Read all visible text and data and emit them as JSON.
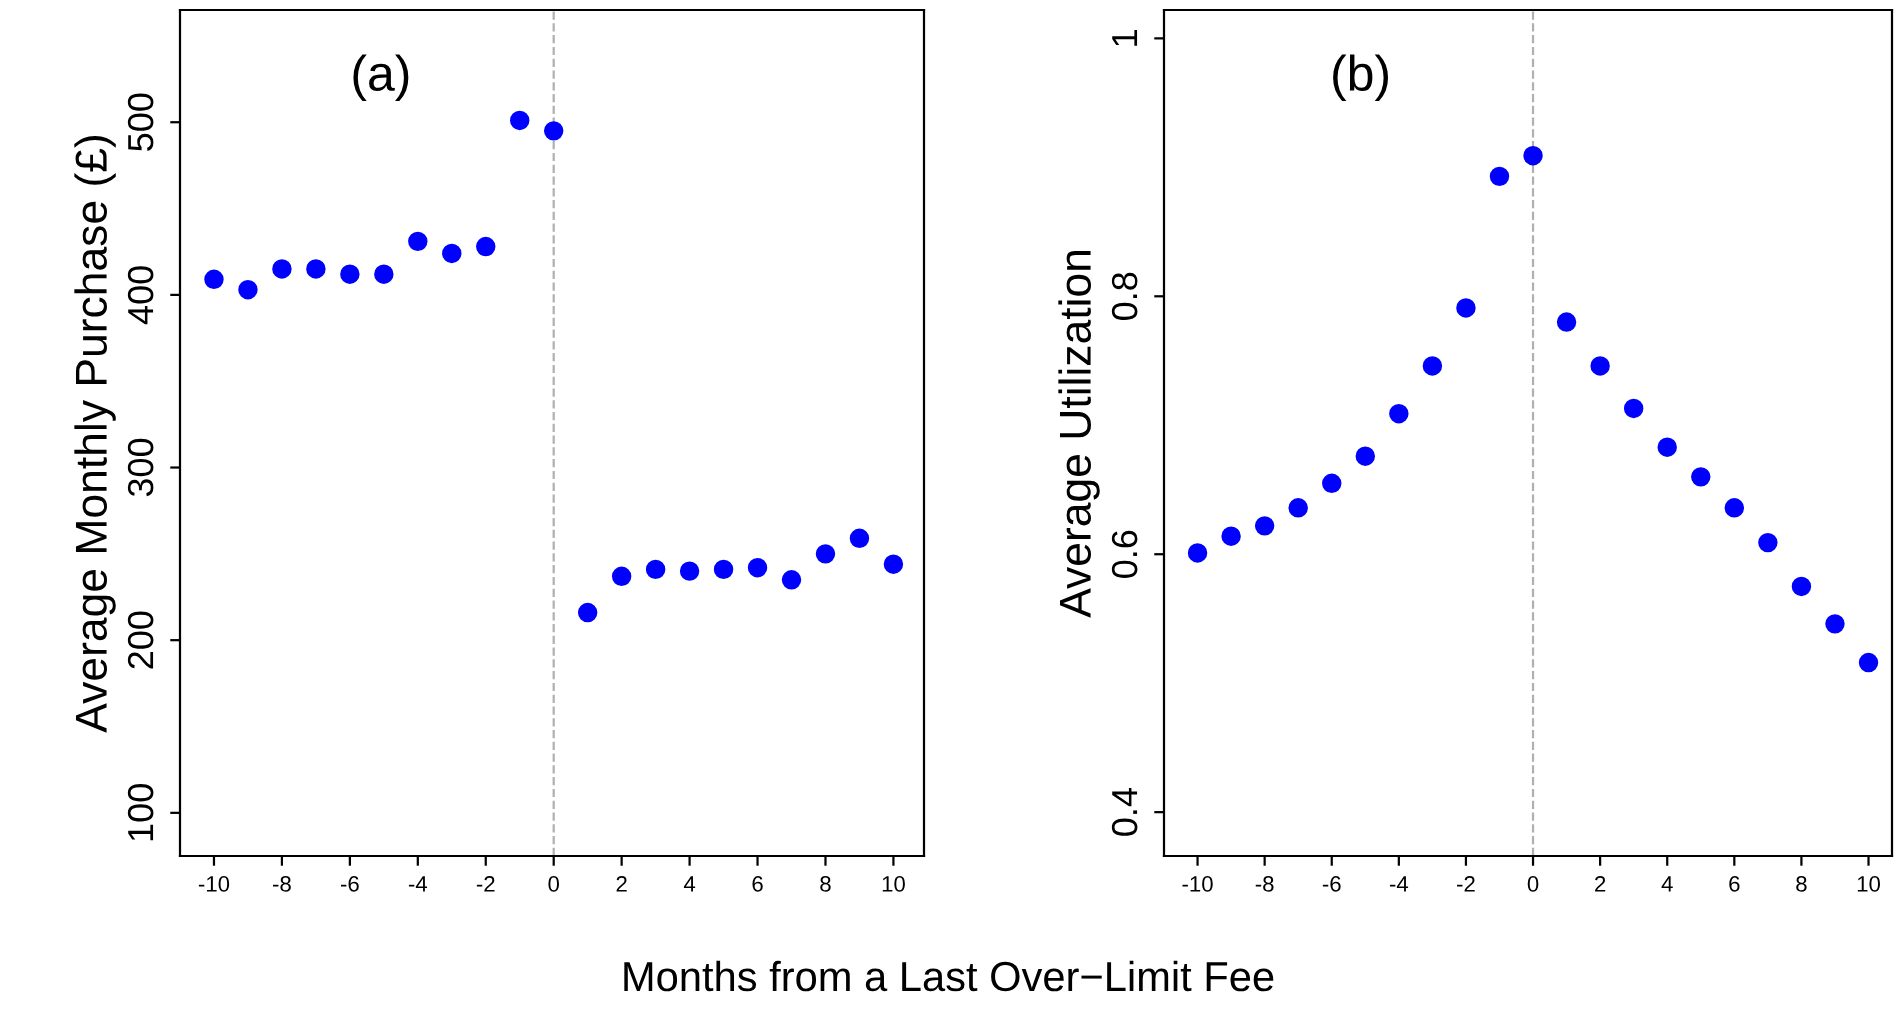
{
  "chart_data": [
    {
      "type": "scatter",
      "ylabel": "Average Monthly Purchase (£)",
      "xlabel": "Months from a Last Over−Limit Fee",
      "annotations": [
        "(a)"
      ],
      "x": [
        -10,
        -9,
        -8,
        -7,
        -6,
        -5,
        -4,
        -3,
        -2,
        -1,
        0,
        1,
        2,
        3,
        4,
        5,
        6,
        7,
        8,
        9,
        10
      ],
      "series": [
        {
          "color": "#0000ff",
          "values": [
            409,
            403,
            415,
            415,
            412,
            412,
            431,
            424,
            428,
            501,
            495,
            216,
            237,
            241,
            240,
            241,
            242,
            235,
            250,
            259,
            244
          ]
        }
      ],
      "xlim": [
        -11,
        10.9
      ],
      "xticks": [
        -10,
        -8,
        -6,
        -4,
        -2,
        0,
        2,
        4,
        6,
        8,
        10
      ],
      "ylim": [
        75,
        565
      ],
      "yticks": [
        100,
        200,
        300,
        400,
        500
      ],
      "marker": "circle",
      "grid": false,
      "ref_lines": [
        {
          "axis": "x",
          "value": 0,
          "color": "#b0b0b0",
          "line_style": "dashed"
        }
      ]
    },
    {
      "type": "scatter",
      "ylabel": "Average Utilization",
      "annotations": [
        "(b)"
      ],
      "x": [
        -10,
        -9,
        -8,
        -7,
        -6,
        -5,
        -4,
        -3,
        -2,
        -1,
        0,
        1,
        2,
        3,
        4,
        5,
        6,
        7,
        8,
        9,
        10
      ],
      "series": [
        {
          "color": "#0000ff",
          "values": [
            0.601,
            0.614,
            0.622,
            0.636,
            0.655,
            0.676,
            0.709,
            0.746,
            0.791,
            0.893,
            0.909,
            0.78,
            0.746,
            0.713,
            0.683,
            0.66,
            0.636,
            0.609,
            0.575,
            0.546,
            0.516
          ]
        }
      ],
      "xlim": [
        -11,
        10.7
      ],
      "xticks": [
        -10,
        -8,
        -6,
        -4,
        -2,
        0,
        2,
        4,
        6,
        8,
        10
      ],
      "ylim": [
        0.366,
        1.022
      ],
      "yticks": [
        0.4,
        0.6,
        0.8,
        1
      ],
      "marker": "circle",
      "grid": false,
      "ref_lines": [
        {
          "axis": "x",
          "value": 0,
          "color": "#b0b0b0",
          "line_style": "dashed"
        }
      ]
    }
  ]
}
